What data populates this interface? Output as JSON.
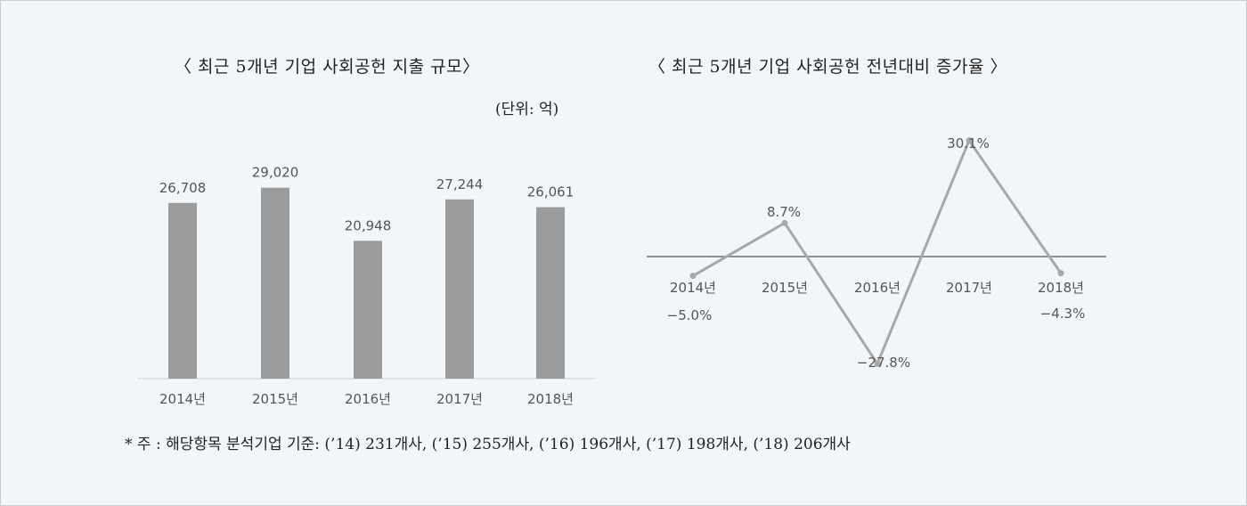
{
  "chart_data": [
    {
      "type": "bar",
      "title": "〈 최근 5개년 기업 사회공헌 지출 규모〉",
      "unit": "(단위: 억)",
      "categories": [
        "2014년",
        "2015년",
        "2016년",
        "2017년",
        "2018년"
      ],
      "values": [
        26708,
        29020,
        20948,
        27244,
        26061
      ],
      "value_labels": [
        "26,708",
        "29,020",
        "20,948",
        "27,244",
        "26,061"
      ],
      "ylim": [
        0,
        35000
      ],
      "color": "#9b9b9b"
    },
    {
      "type": "line",
      "title": "〈 최근 5개년 기업 사회공헌 전년대비 증가율 〉",
      "categories": [
        "2014년",
        "2015년",
        "2016년",
        "2017년",
        "2018년"
      ],
      "values": [
        -5.0,
        8.7,
        -27.8,
        30.1,
        -4.3
      ],
      "value_labels": [
        "−5.0%",
        "8.7%",
        "−27.8%",
        "30.1%",
        "−4.3%"
      ],
      "ylim": [
        -35,
        35
      ],
      "color": "#a8a8a8"
    }
  ],
  "footnote": "* 주 : 해당항목 분석기업 기준: (’14) 231개사, (’15) 255개사, (’16) 196개사, (’17) 198개사, (’18) 206개사"
}
